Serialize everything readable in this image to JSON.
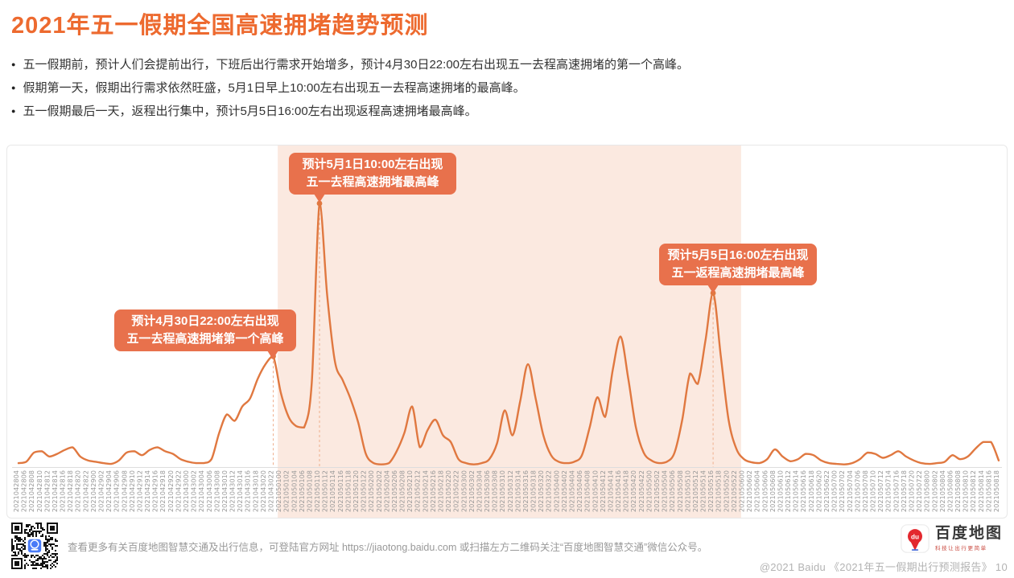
{
  "title": "2021年五一假期全国高速拥堵趋势预测",
  "title_color": "#ED6A2F",
  "bullets": [
    "五一假期前，预计人们会提前出行，下班后出行需求开始增多，预计4月30日22:00左右出现五一去程高速拥堵的第一个高峰。",
    "假期第一天，假期出行需求依然旺盛，5月1日早上10:00左右出现五一去程高速拥堵的最高峰。",
    "五一假期最后一天，返程出行集中，预计5月5日16:00左右出现返程高速拥堵最高峰。"
  ],
  "chart_data": {
    "type": "line",
    "title": "2021年五一假期全国高速拥堵趋势预测",
    "ylim": [
      0,
      100
    ],
    "grid": false,
    "note": "数值为相对拥堵水平（0-100，无可见y轴），x为2小时粒度时间戳",
    "line_color": "#E07840",
    "shade_color": "#FBE9E0",
    "shade_region": {
      "from": "2021050100",
      "to": "2021050522"
    },
    "x": [
      "2021042804",
      "2021042806",
      "2021042808",
      "2021042810",
      "2021042812",
      "2021042814",
      "2021042816",
      "2021042818",
      "2021042820",
      "2021042822",
      "2021042900",
      "2021042902",
      "2021042904",
      "2021042906",
      "2021042908",
      "2021042910",
      "2021042912",
      "2021042914",
      "2021042916",
      "2021042918",
      "2021042920",
      "2021042922",
      "2021043000",
      "2021043002",
      "2021043004",
      "2021043006",
      "2021043008",
      "2021043010",
      "2021043012",
      "2021043014",
      "2021043016",
      "2021043018",
      "2021043020",
      "2021043022",
      "2021050100",
      "2021050102",
      "2021050104",
      "2021050106",
      "2021050108",
      "2021050110",
      "2021050112",
      "2021050114",
      "2021050116",
      "2021050118",
      "2021050120",
      "2021050122",
      "2021050200",
      "2021050202",
      "2021050204",
      "2021050206",
      "2021050208",
      "2021050210",
      "2021050212",
      "2021050214",
      "2021050216",
      "2021050218",
      "2021050220",
      "2021050222",
      "2021050300",
      "2021050302",
      "2021050304",
      "2021050306",
      "2021050308",
      "2021050310",
      "2021050312",
      "2021050314",
      "2021050316",
      "2021050318",
      "2021050320",
      "2021050322",
      "2021050400",
      "2021050402",
      "2021050404",
      "2021050406",
      "2021050408",
      "2021050410",
      "2021050412",
      "2021050414",
      "2021050416",
      "2021050418",
      "2021050420",
      "2021050422",
      "2021050500",
      "2021050502",
      "2021050504",
      "2021050506",
      "2021050508",
      "2021050510",
      "2021050512",
      "2021050514",
      "2021050516",
      "2021050518",
      "2021050520",
      "2021050522",
      "2021050600",
      "2021050602",
      "2021050604",
      "2021050606",
      "2021050608",
      "2021050610",
      "2021050612",
      "2021050614",
      "2021050616",
      "2021050618",
      "2021050620",
      "2021050622",
      "2021050700",
      "2021050702",
      "2021050704",
      "2021050706",
      "2021050708",
      "2021050710",
      "2021050712",
      "2021050714",
      "2021050716",
      "2021050718",
      "2021050720",
      "2021050722",
      "2021050800",
      "2021050802",
      "2021050804",
      "2021050806",
      "2021050808",
      "2021050810",
      "2021050812",
      "2021050814",
      "2021050816",
      "2021050818"
    ],
    "series": [
      {
        "name": "全国高速拥堵趋势预测",
        "values": [
          1.5,
          2,
          5.5,
          6,
          4,
          5,
          6.5,
          7.5,
          4,
          2.5,
          2,
          1.5,
          1.2,
          2.5,
          5.5,
          6,
          4.5,
          6.5,
          7.5,
          6,
          5,
          3,
          2,
          1.5,
          1.5,
          3,
          13,
          20,
          17.5,
          23,
          26,
          33.5,
          39,
          42,
          28,
          19,
          15.5,
          15,
          32,
          100,
          65,
          40,
          33,
          26,
          17,
          5,
          1.5,
          1,
          1.5,
          6,
          13,
          23,
          7.5,
          14,
          18,
          12,
          9.5,
          3,
          1.5,
          1,
          1.5,
          3,
          9,
          21.5,
          12,
          25,
          39,
          26,
          12,
          4.5,
          2,
          1.5,
          2,
          4.5,
          15,
          26.5,
          19,
          37,
          49.5,
          33.5,
          15,
          5.5,
          2.5,
          1.5,
          2,
          5.5,
          18,
          35.5,
          31.5,
          48,
          66,
          42,
          18,
          7,
          3,
          1.8,
          1.5,
          3,
          6.7,
          4,
          2.2,
          3,
          5,
          4.5,
          2.5,
          1.5,
          1.2,
          1,
          1.5,
          3,
          5.5,
          5,
          3.5,
          4.5,
          6,
          4,
          2.5,
          1.5,
          1.2,
          1.5,
          2,
          4.5,
          3,
          4,
          7,
          9.5,
          9.5,
          2.5
        ]
      }
    ],
    "annotations": [
      {
        "at": "2021043022",
        "line1": "预计4月30日22:00左右出现",
        "line2": "五一去程高速拥堵第一个高峰"
      },
      {
        "at": "2021050110",
        "line1": "预计5月1日10:00左右出现",
        "line2": "五一去程高速拥堵最高峰"
      },
      {
        "at": "2021050516",
        "line1": "预计5月5日16:00左右出现",
        "line2": "五一返程高速拥堵最高峰"
      }
    ]
  },
  "footer": {
    "note": "查看更多有关百度地图智慧交通及出行信息，可登陆官方网址 https://jiaotong.baidu.com 或扫描左方二维码关注“百度地图智慧交通”微信公众号。",
    "logo_name": "百度地图",
    "logo_tagline": "科技让出行更简单",
    "logo_pin_label": "du",
    "copyright": "@2021 Baidu 《2021年五一假期出行预测报告》 10"
  }
}
